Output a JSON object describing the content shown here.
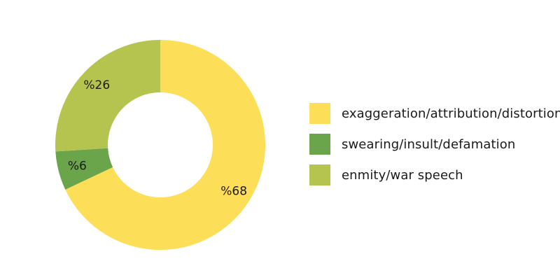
{
  "chart_data": {
    "type": "donut",
    "categories": [
      "exaggeration/attribution/distortion",
      "swearing/insult/defamation",
      "enmity/war speech"
    ],
    "values": [
      68,
      6,
      26
    ],
    "data_labels": [
      "%68",
      "%6",
      "%26"
    ],
    "colors": [
      "#FDDE58",
      "#6AA44B",
      "#B5C44E"
    ],
    "legend_position": "right"
  }
}
